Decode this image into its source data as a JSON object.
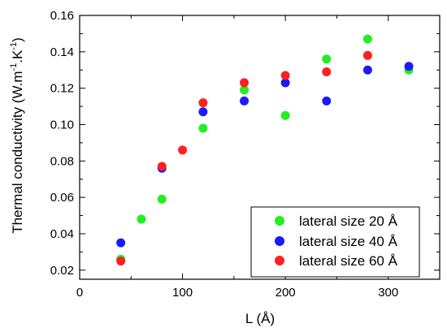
{
  "chart_data": {
    "type": "scatter",
    "xlabel": "L (Å)",
    "ylabel_main": "Thermal conductivity (W.m",
    "ylabel_sup1": "-1",
    "ylabel_mid": ".K",
    "ylabel_sup2": "-1",
    "ylabel_end": ")",
    "xlim": [
      0,
      350
    ],
    "ylim": [
      0.015,
      0.16
    ],
    "xticks": [
      0,
      100,
      200,
      300
    ],
    "yticks": [
      0.02,
      0.04,
      0.06,
      0.08,
      0.1,
      0.12,
      0.14,
      0.16
    ],
    "ytick_labels": [
      "0.02",
      "0.04",
      "0.06",
      "0.08",
      "0.10",
      "0.12",
      "0.14",
      "0.16"
    ],
    "grid": false,
    "legend_position": "bottom-right",
    "series": [
      {
        "name": "lateral size 20 Å",
        "color": "#22ee22",
        "x": [
          40,
          60,
          80,
          120,
          160,
          200,
          240,
          280,
          320
        ],
        "y": [
          0.026,
          0.048,
          0.059,
          0.098,
          0.119,
          0.105,
          0.136,
          0.147,
          0.13
        ]
      },
      {
        "name": "lateral size 40 Å",
        "color": "#1a1aff",
        "x": [
          40,
          80,
          120,
          160,
          200,
          240,
          280,
          320
        ],
        "y": [
          0.035,
          0.076,
          0.107,
          0.113,
          0.123,
          0.113,
          0.13,
          0.132
        ]
      },
      {
        "name": "lateral size 60 Å",
        "color": "#ff2020",
        "x": [
          40,
          80,
          100,
          120,
          160,
          200,
          240,
          280
        ],
        "y": [
          0.025,
          0.077,
          0.086,
          0.112,
          0.123,
          0.127,
          0.129,
          0.138
        ]
      }
    ]
  }
}
